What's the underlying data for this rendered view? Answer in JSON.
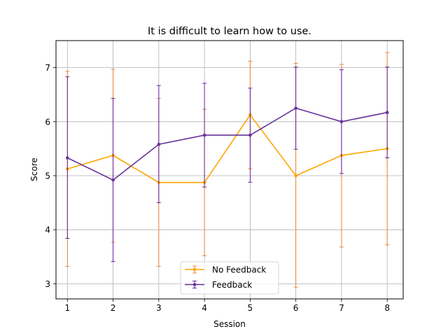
{
  "chart_data": {
    "type": "line",
    "title": "It is difficult to learn how to use.",
    "xlabel": "Session",
    "ylabel": "Score",
    "x": [
      1,
      2,
      3,
      4,
      5,
      6,
      7,
      8
    ],
    "xlim": [
      0.75,
      8.35
    ],
    "ylim": [
      2.72,
      7.5
    ],
    "xticks": [
      1,
      2,
      3,
      4,
      5,
      6,
      7,
      8
    ],
    "yticks": [
      3,
      4,
      5,
      6,
      7
    ],
    "grid": true,
    "legend_position": "lower center",
    "series": [
      {
        "name": "No Feedback",
        "color": "#ffa500",
        "errcolor": "#e87c2a",
        "values": [
          5.125,
          5.375,
          4.875,
          4.875,
          6.125,
          5.0,
          5.375,
          5.5
        ],
        "err_low": [
          3.32,
          3.77,
          3.32,
          3.52,
          5.13,
          2.93,
          3.68,
          3.72
        ],
        "err_high": [
          6.93,
          6.97,
          6.43,
          6.23,
          7.12,
          7.08,
          7.06,
          7.28
        ]
      },
      {
        "name": "Feedback",
        "color": "#663399",
        "errcolor": "#5a10a0",
        "values": [
          5.33,
          4.92,
          5.58,
          5.75,
          5.75,
          6.25,
          6.0,
          6.17
        ],
        "err_low": [
          3.84,
          3.41,
          4.5,
          4.79,
          4.88,
          5.49,
          5.04,
          5.33
        ],
        "err_high": [
          6.83,
          6.43,
          6.67,
          6.71,
          6.62,
          7.01,
          6.96,
          7.01
        ]
      }
    ]
  }
}
